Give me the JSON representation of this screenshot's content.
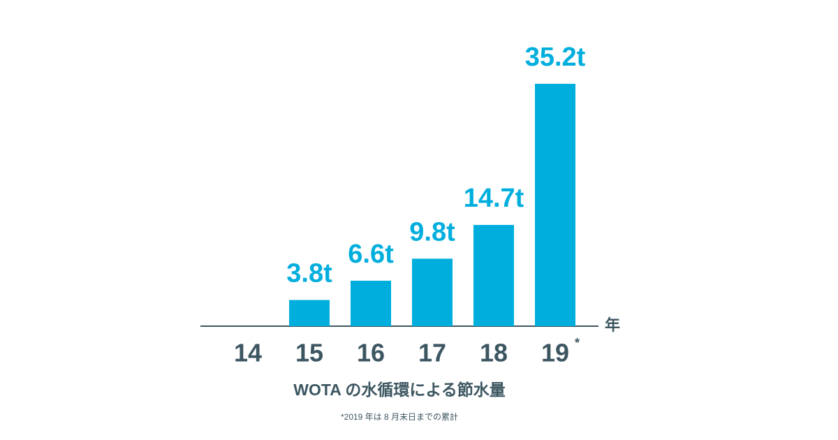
{
  "chart_data": {
    "type": "bar",
    "title": "WOTA の水循環による節水量",
    "footnote": "*2019 年は 8 月末日までの累計",
    "x_label": "年",
    "categories": [
      "14",
      "15",
      "16",
      "17",
      "18",
      "19"
    ],
    "category_marker": "*",
    "values": [
      null,
      3.8,
      6.6,
      9.8,
      14.7,
      35.2
    ],
    "value_labels": [
      null,
      "3.8t",
      "6.6t",
      "9.8t",
      "14.7t",
      "35.2t"
    ],
    "color": "#00aedd"
  }
}
